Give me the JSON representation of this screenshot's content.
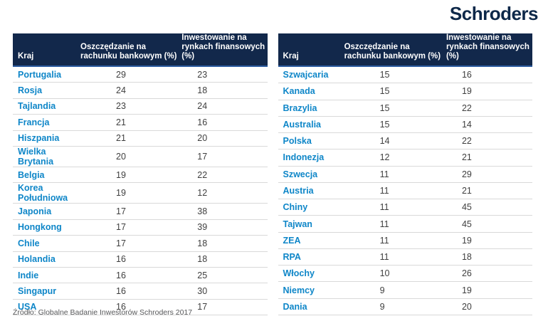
{
  "logo": {
    "text": "Schroders"
  },
  "colors": {
    "header_bg": "#12284b",
    "header_underline": "#2e5da1",
    "country_blue": "#0e86c8",
    "value_gray": "#3f3f3f",
    "row_border": "#d9d9d9",
    "logo_navy": "#0d2849",
    "source_gray": "#58595b"
  },
  "table_headers": {
    "country": "Kraj",
    "saving": "Oszczędzanie na\nrachunku bankowym (%)",
    "investing": "Inwestowanie na\nrynkach finansowych (%)"
  },
  "left_table": {
    "rows": [
      {
        "country": "Portugalia",
        "saving": "29",
        "investing": "23"
      },
      {
        "country": "Rosja",
        "saving": "24",
        "investing": "18"
      },
      {
        "country": "Tajlandia",
        "saving": "23",
        "investing": "24"
      },
      {
        "country": "Francja",
        "saving": "21",
        "investing": "16"
      },
      {
        "country": "Hiszpania",
        "saving": "21",
        "investing": "20"
      },
      {
        "country": "Wielka Brytania",
        "saving": "20",
        "investing": "17"
      },
      {
        "country": "Belgia",
        "saving": "19",
        "investing": "22"
      },
      {
        "country": "Korea Południowa",
        "saving": "19",
        "investing": "12"
      },
      {
        "country": "Japonia",
        "saving": "17",
        "investing": "38"
      },
      {
        "country": "Hongkong",
        "saving": "17",
        "investing": "39"
      },
      {
        "country": "Chile",
        "saving": "17",
        "investing": "18"
      },
      {
        "country": "Holandia",
        "saving": "16",
        "investing": "18"
      },
      {
        "country": "Indie",
        "saving": "16",
        "investing": "25"
      },
      {
        "country": "Singapur",
        "saving": "16",
        "investing": "30"
      },
      {
        "country": "USA",
        "saving": "16",
        "investing": "17"
      }
    ]
  },
  "right_table": {
    "rows": [
      {
        "country": "Szwajcaria",
        "saving": "15",
        "investing": "16"
      },
      {
        "country": "Kanada",
        "saving": "15",
        "investing": "19"
      },
      {
        "country": "Brazylia",
        "saving": "15",
        "investing": "22"
      },
      {
        "country": "Australia",
        "saving": "15",
        "investing": "14"
      },
      {
        "country": "Polska",
        "saving": "14",
        "investing": "22"
      },
      {
        "country": "Indonezja",
        "saving": "12",
        "investing": "21"
      },
      {
        "country": "Szwecja",
        "saving": "11",
        "investing": "29"
      },
      {
        "country": "Austria",
        "saving": "11",
        "investing": "21"
      },
      {
        "country": "Chiny",
        "saving": "11",
        "investing": "45"
      },
      {
        "country": "Tajwan",
        "saving": "11",
        "investing": "45"
      },
      {
        "country": "ZEA",
        "saving": "11",
        "investing": "19"
      },
      {
        "country": "RPA",
        "saving": "11",
        "investing": "18"
      },
      {
        "country": "Włochy",
        "saving": "10",
        "investing": "26"
      },
      {
        "country": "Niemcy",
        "saving": "9",
        "investing": "19"
      },
      {
        "country": "Dania",
        "saving": "9",
        "investing": "20"
      }
    ]
  },
  "footer": {
    "source": "Źródło: Globalne Badanie Inwestorów Schroders 2017"
  },
  "chart_data": {
    "type": "table",
    "columns": [
      "Kraj",
      "Oszczędzanie na rachunku bankowym (%)",
      "Inwestowanie na rynkach finansowych (%)"
    ],
    "rows": [
      [
        "Portugalia",
        29,
        23
      ],
      [
        "Rosja",
        24,
        18
      ],
      [
        "Tajlandia",
        23,
        24
      ],
      [
        "Francja",
        21,
        16
      ],
      [
        "Hiszpania",
        21,
        20
      ],
      [
        "Wielka Brytania",
        20,
        17
      ],
      [
        "Belgia",
        19,
        22
      ],
      [
        "Korea Południowa",
        19,
        12
      ],
      [
        "Japonia",
        17,
        38
      ],
      [
        "Hongkong",
        17,
        39
      ],
      [
        "Chile",
        17,
        18
      ],
      [
        "Holandia",
        16,
        18
      ],
      [
        "Indie",
        16,
        25
      ],
      [
        "Singapur",
        16,
        30
      ],
      [
        "USA",
        16,
        17
      ],
      [
        "Szwajcaria",
        15,
        16
      ],
      [
        "Kanada",
        15,
        19
      ],
      [
        "Brazylia",
        15,
        22
      ],
      [
        "Australia",
        15,
        14
      ],
      [
        "Polska",
        14,
        22
      ],
      [
        "Indonezja",
        12,
        21
      ],
      [
        "Szwecja",
        11,
        29
      ],
      [
        "Austria",
        11,
        21
      ],
      [
        "Chiny",
        11,
        45
      ],
      [
        "Tajwan",
        11,
        45
      ],
      [
        "ZEA",
        11,
        19
      ],
      [
        "RPA",
        11,
        18
      ],
      [
        "Włochy",
        10,
        26
      ],
      [
        "Niemcy",
        9,
        19
      ],
      [
        "Dania",
        9,
        20
      ]
    ],
    "source": "Źródło: Globalne Badanie Inwestorów Schroders 2017"
  }
}
